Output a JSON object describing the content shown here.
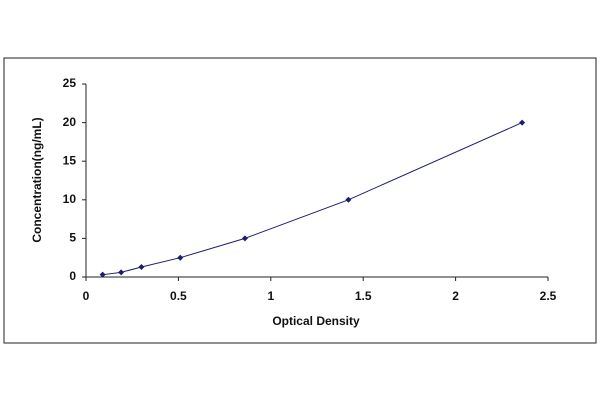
{
  "chart_data": {
    "type": "scatter",
    "x_label": "Optical Density",
    "y_label": "Concentration(ng/mL)",
    "series": [
      {
        "color": "#1c1c70",
        "x": [
          0.09,
          0.19,
          0.3,
          0.51,
          0.86,
          1.42,
          2.36
        ],
        "values": [
          0.3,
          0.6,
          1.3,
          2.5,
          5,
          10,
          20
        ]
      }
    ],
    "line": true,
    "xlim": [
      0,
      2.5
    ],
    "xticks": [
      0,
      0.5,
      1,
      1.5,
      2,
      2.5
    ],
    "ylim": [
      0,
      25
    ],
    "yticks": [
      0,
      5,
      10,
      15,
      20,
      25
    ],
    "grid": false
  }
}
